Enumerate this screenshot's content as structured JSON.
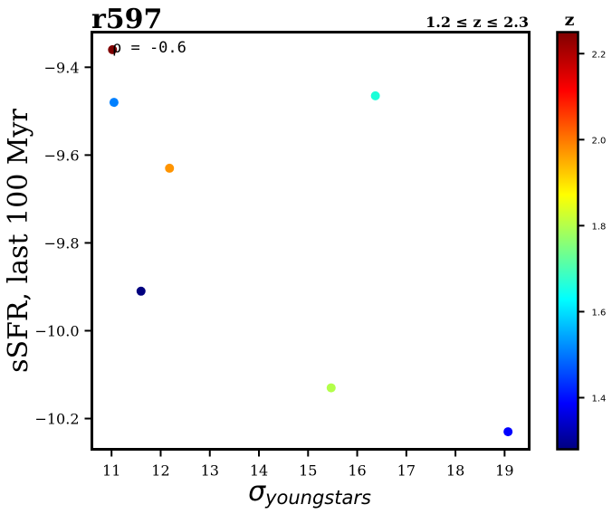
{
  "chart_data": {
    "type": "scatter",
    "title": "r597",
    "subtitle": "1.2 ≤ z ≤ 2.3",
    "xlabel_symbol": "σ",
    "xlabel_sub": "youngstars",
    "ylabel": "sSFR, last 100 Myr",
    "annotation": "ρ = -0.6",
    "xlim": [
      10.6,
      19.5
    ],
    "ylim": [
      -10.27,
      -9.32
    ],
    "xticks": [
      11,
      12,
      13,
      14,
      15,
      16,
      17,
      18,
      19
    ],
    "yticks": [
      -9.4,
      -9.6,
      -9.8,
      -10.0,
      -10.2
    ],
    "ytick_labels": [
      "−9.4",
      "−9.6",
      "−9.8",
      "−10.0",
      "−10.2"
    ],
    "colorbar": {
      "label": "z",
      "range": [
        1.28,
        2.25
      ],
      "ticks": [
        1.4,
        1.6,
        1.8,
        2.0,
        2.2
      ],
      "tick_labels": [
        "1.4",
        "1.6",
        "1.8",
        "2.0",
        "2.2"
      ],
      "colormap": "jet"
    },
    "points": [
      {
        "x": 11.02,
        "y": -9.36,
        "z": 2.25,
        "color": "#800000"
      },
      {
        "x": 11.05,
        "y": -9.48,
        "z": 1.53,
        "color": "#0080ff"
      },
      {
        "x": 12.18,
        "y": -9.63,
        "z": 2.02,
        "color": "#ff9400"
      },
      {
        "x": 11.6,
        "y": -9.91,
        "z": 1.28,
        "color": "#00007f"
      },
      {
        "x": 16.37,
        "y": -9.465,
        "z": 1.68,
        "color": "#1cffd9"
      },
      {
        "x": 15.47,
        "y": -10.13,
        "z": 1.84,
        "color": "#b3ff4a"
      },
      {
        "x": 19.07,
        "y": -10.23,
        "z": 1.36,
        "color": "#0000ff"
      }
    ]
  }
}
